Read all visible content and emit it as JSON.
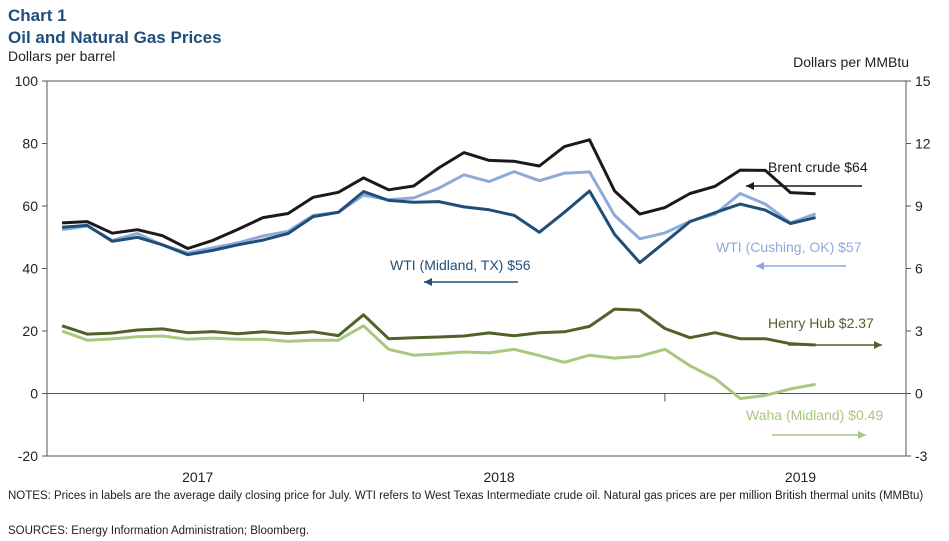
{
  "header": {
    "chart_number": "Chart 1",
    "title": "Oil and Natural Gas Prices",
    "y_left_label": "Dollars per barrel",
    "y_right_label": "Dollars per MMBtu"
  },
  "notes": "NOTES: Prices in labels are the average  daily closing price for July. WTI refers to West Texas Intermediate  crude oil. Natural gas prices are per million British thermal units (MMBtu)",
  "sources": "SOURCES: Energy Information  Administration; Bloomberg.",
  "chart_data": {
    "type": "line",
    "x_labels": [
      "2017",
      "2018",
      "2019"
    ],
    "y_left": {
      "min": -20,
      "max": 100,
      "ticks": [
        -20,
        0,
        20,
        40,
        60,
        80,
        100
      ]
    },
    "y_right": {
      "min": -3,
      "max": 15,
      "ticks": [
        -3,
        0,
        3,
        6,
        9,
        12,
        15
      ]
    },
    "x_dividers": [
      2017.5,
      2018.5
    ],
    "series": [
      {
        "name": "Brent crude $64",
        "axis": "left",
        "color": "#1a1a1a",
        "x": [
          2016.5,
          2016.5833,
          2016.6667,
          2016.75,
          2016.8333,
          2016.9167,
          2017.0,
          2017.0833,
          2017.1667,
          2017.25,
          2017.3333,
          2017.4167,
          2017.5,
          2017.5833,
          2017.6667,
          2017.75,
          2017.8333,
          2017.9167,
          2018.0,
          2018.0833,
          2018.1667,
          2018.25,
          2018.3333,
          2018.4167,
          2018.5,
          2018.5833,
          2018.6667,
          2018.75,
          2018.8333,
          2018.9167,
          2019.0
        ],
        "y": [
          54.6,
          55.0,
          51.3,
          52.4,
          50.5,
          46.4,
          49.0,
          52.5,
          56.3,
          57.6,
          62.8,
          64.4,
          69.0,
          65.2,
          66.4,
          72.2,
          77.1,
          74.6,
          74.3,
          72.8,
          79.0,
          81.2,
          64.8,
          57.4,
          59.5,
          64.0,
          66.3,
          71.5,
          71.4,
          64.3,
          63.9
        ],
        "label_dx": -18
      },
      {
        "name": "WTI (Cushing, OK) $57",
        "axis": "left",
        "color": "#8eaadb",
        "x": [
          2016.5,
          2016.5833,
          2016.6667,
          2016.75,
          2016.8333,
          2016.9167,
          2017.0,
          2017.0833,
          2017.1667,
          2017.25,
          2017.3333,
          2017.4167,
          2017.5,
          2017.5833,
          2017.6667,
          2017.75,
          2017.8333,
          2017.9167,
          2018.0,
          2018.0833,
          2018.1667,
          2018.25,
          2018.3333,
          2018.4167,
          2018.5,
          2018.5833,
          2018.6667,
          2018.75,
          2018.8333,
          2018.9167,
          2019.0
        ],
        "y": [
          52.4,
          53.6,
          49.0,
          51.2,
          47.5,
          45.0,
          46.6,
          48.2,
          50.4,
          51.9,
          57.0,
          58.0,
          63.5,
          62.0,
          62.6,
          65.7,
          70.0,
          67.8,
          71.0,
          68.1,
          70.5,
          70.9,
          57.0,
          49.5,
          51.4,
          55.1,
          57.4,
          64.0,
          60.6,
          54.6,
          57.5
        ]
      },
      {
        "name": "WTI (Midland, TX) $56",
        "axis": "left",
        "color": "#1f4e79",
        "x": [
          2016.5,
          2016.5833,
          2016.6667,
          2016.75,
          2016.8333,
          2016.9167,
          2017.0,
          2017.0833,
          2017.1667,
          2017.25,
          2017.3333,
          2017.4167,
          2017.5,
          2017.5833,
          2017.6667,
          2017.75,
          2017.8333,
          2017.9167,
          2018.0,
          2018.0833,
          2018.1667,
          2018.25,
          2018.3333,
          2018.4167,
          2018.5,
          2018.5833,
          2018.6667,
          2018.75,
          2018.8333,
          2018.9167,
          2019.0
        ],
        "y": [
          53.2,
          53.8,
          48.7,
          50.0,
          47.6,
          44.4,
          45.8,
          47.6,
          49.1,
          51.2,
          56.6,
          58.0,
          64.6,
          61.8,
          61.2,
          61.4,
          59.7,
          58.8,
          57.0,
          51.6,
          58.0,
          64.8,
          50.9,
          41.9,
          48.4,
          55.0,
          57.9,
          60.6,
          58.7,
          54.4,
          56.3
        ]
      },
      {
        "name": "Henry Hub $2.37",
        "axis": "right",
        "color": "#4f6228",
        "x": [
          2016.5,
          2016.5833,
          2016.6667,
          2016.75,
          2016.8333,
          2016.9167,
          2017.0,
          2017.0833,
          2017.1667,
          2017.25,
          2017.3333,
          2017.4167,
          2017.5,
          2017.5833,
          2017.6667,
          2017.75,
          2017.8333,
          2017.9167,
          2018.0,
          2018.0833,
          2018.1667,
          2018.25,
          2018.3333,
          2018.4167,
          2018.5,
          2018.5833,
          2018.6667,
          2018.75,
          2018.8333,
          2018.9167,
          2019.0
        ],
        "y": [
          3.25,
          2.85,
          2.9,
          3.05,
          3.1,
          2.92,
          2.97,
          2.87,
          2.96,
          2.88,
          2.96,
          2.78,
          3.78,
          2.63,
          2.68,
          2.71,
          2.76,
          2.91,
          2.77,
          2.92,
          2.96,
          3.22,
          4.05,
          4.0,
          3.12,
          2.68,
          2.92,
          2.63,
          2.63,
          2.39,
          2.33
        ]
      },
      {
        "name": "Waha (Midland) $0.49",
        "axis": "right",
        "color": "#a9c77e",
        "x": [
          2016.5,
          2016.5833,
          2016.6667,
          2016.75,
          2016.8333,
          2016.9167,
          2017.0,
          2017.0833,
          2017.1667,
          2017.25,
          2017.3333,
          2017.4167,
          2017.5,
          2017.5833,
          2017.6667,
          2017.75,
          2017.8333,
          2017.9167,
          2018.0,
          2018.0833,
          2018.1667,
          2018.25,
          2018.3333,
          2018.4167,
          2018.5,
          2018.5833,
          2018.6667,
          2018.75,
          2018.8333,
          2018.9167,
          2019.0
        ],
        "y": [
          3.0,
          2.56,
          2.62,
          2.72,
          2.76,
          2.6,
          2.66,
          2.6,
          2.6,
          2.5,
          2.56,
          2.56,
          3.25,
          2.12,
          1.84,
          1.9,
          1.99,
          1.95,
          2.12,
          1.82,
          1.5,
          1.84,
          1.7,
          1.79,
          2.12,
          1.33,
          0.72,
          -0.24,
          -0.09,
          0.22,
          0.44
        ]
      }
    ]
  }
}
